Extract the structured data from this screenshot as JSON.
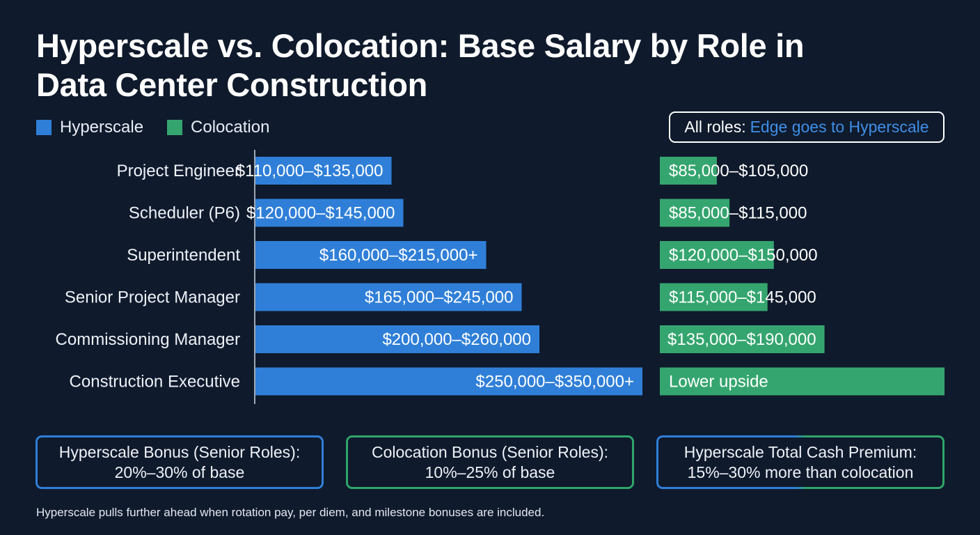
{
  "title": "Hyperscale vs. Colocation: Base Salary by Role in Data Center Construction",
  "legend": [
    {
      "label": "Hyperscale",
      "color": "#2f7fd8"
    },
    {
      "label": "Colocation",
      "color": "#35a56f"
    }
  ],
  "callout": {
    "prefix": "All roles:",
    "highlight": "Edge goes to Hyperscale"
  },
  "chart_data": {
    "type": "bar",
    "orientation": "horizontal",
    "categories": [
      "Project Engineer",
      "Scheduler (P6)",
      "Superintendent",
      "Senior Project Manager",
      "Commissioning Manager",
      "Construction Executive"
    ],
    "series": [
      {
        "name": "Hyperscale",
        "color": "#2f7fd8",
        "low": [
          110000,
          120000,
          160000,
          165000,
          200000,
          250000
        ],
        "high": [
          135000,
          145000,
          215000,
          245000,
          260000,
          350000
        ],
        "labels": [
          "$110,000–$135,000",
          "$120,000–$145,000",
          "$160,000–$215,000+",
          "$165,000–$245,000",
          "$200,000–$260,000",
          "$250,000–$350,000+"
        ]
      },
      {
        "name": "Colocation",
        "color": "#35a56f",
        "low": [
          85000,
          85000,
          120000,
          115000,
          135000,
          null
        ],
        "high": [
          105000,
          115000,
          150000,
          145000,
          190000,
          null
        ],
        "labels": [
          "$85,000–$105,000",
          "$85,000–$115,000",
          "$120,000–$150,000",
          "$115,000–$145,000",
          "$135,000–$190,000",
          "Lower upside"
        ]
      }
    ]
  },
  "boxes": [
    {
      "line1": "Hyperscale Bonus (Senior Roles):",
      "line2": "20%–30% of base"
    },
    {
      "line1": "Colocation Bonus (Senior Roles):",
      "line2": "10%–25% of base"
    },
    {
      "line1": "Hyperscale Total Cash Premium:",
      "line2": "15%–30% more than colocation"
    }
  ],
  "footnote": "Hyperscale pulls further ahead when rotation pay, per diem, and milestone bonuses are included."
}
